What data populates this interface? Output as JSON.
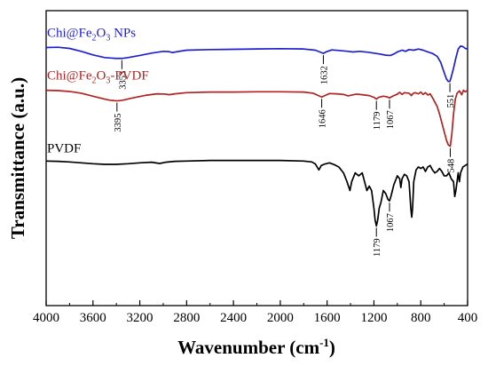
{
  "chart_data": {
    "type": "line",
    "title": "",
    "xlabel": "Wavenumber (cm⁻¹)",
    "xlabel_parts": {
      "main": "Wavenumber (cm",
      "sup": "-1",
      "close": ")"
    },
    "ylabel": "Transmittance (a.u.)",
    "xlim": [
      4000,
      400
    ],
    "x_reversed": true,
    "ylim": [
      0,
      1
    ],
    "y_ticks_shown": false,
    "grid": false,
    "x_ticks": [
      4000,
      3600,
      3200,
      2800,
      2400,
      2000,
      1600,
      1200,
      800,
      400
    ],
    "x_tick_labels": [
      "4000",
      "3600",
      "3200",
      "2800",
      "2400",
      "2000",
      "1600",
      "1200",
      "800",
      "400"
    ],
    "series": [
      {
        "name": "Chi@Fe₂O₃ NPs",
        "label_parts": {
          "pre": "Chi@Fe",
          "sub1": "2",
          "mid": "O",
          "sub2": "3",
          "post": " NPs"
        },
        "color": "#1f1fd0",
        "points": [
          [
            4000,
            0.875
          ],
          [
            3900,
            0.876
          ],
          [
            3800,
            0.872
          ],
          [
            3700,
            0.862
          ],
          [
            3600,
            0.85
          ],
          [
            3500,
            0.841
          ],
          [
            3400,
            0.838
          ],
          [
            3353,
            0.838
          ],
          [
            3300,
            0.841
          ],
          [
            3200,
            0.848
          ],
          [
            3100,
            0.856
          ],
          [
            3000,
            0.862
          ],
          [
            2950,
            0.861
          ],
          [
            2920,
            0.858
          ],
          [
            2880,
            0.861
          ],
          [
            2800,
            0.866
          ],
          [
            2600,
            0.868
          ],
          [
            2400,
            0.869
          ],
          [
            2200,
            0.87
          ],
          [
            2000,
            0.871
          ],
          [
            1800,
            0.87
          ],
          [
            1700,
            0.866
          ],
          [
            1650,
            0.858
          ],
          [
            1632,
            0.855
          ],
          [
            1610,
            0.86
          ],
          [
            1560,
            0.867
          ],
          [
            1500,
            0.865
          ],
          [
            1420,
            0.862
          ],
          [
            1380,
            0.86
          ],
          [
            1320,
            0.862
          ],
          [
            1250,
            0.859
          ],
          [
            1200,
            0.856
          ],
          [
            1150,
            0.853
          ],
          [
            1100,
            0.849
          ],
          [
            1060,
            0.848
          ],
          [
            1030,
            0.853
          ],
          [
            1000,
            0.86
          ],
          [
            960,
            0.866
          ],
          [
            930,
            0.862
          ],
          [
            900,
            0.868
          ],
          [
            860,
            0.866
          ],
          [
            820,
            0.87
          ],
          [
            780,
            0.866
          ],
          [
            740,
            0.86
          ],
          [
            700,
            0.855
          ],
          [
            660,
            0.845
          ],
          [
            630,
            0.825
          ],
          [
            600,
            0.79
          ],
          [
            580,
            0.768
          ],
          [
            565,
            0.76
          ],
          [
            551,
            0.76
          ],
          [
            540,
            0.775
          ],
          [
            520,
            0.805
          ],
          [
            500,
            0.84
          ],
          [
            480,
            0.87
          ],
          [
            460,
            0.88
          ],
          [
            440,
            0.878
          ],
          [
            420,
            0.872
          ],
          [
            400,
            0.87
          ]
        ]
      },
      {
        "name": "Chi@Fe₂O₃-PVDF",
        "label_parts": {
          "pre": "Chi@Fe",
          "sub1": "2",
          "mid": "O",
          "sub2": "3",
          "post": "-PVDF"
        },
        "color": "#b22222",
        "points": [
          [
            4000,
            0.73
          ],
          [
            3900,
            0.729
          ],
          [
            3800,
            0.726
          ],
          [
            3700,
            0.72
          ],
          [
            3600,
            0.71
          ],
          [
            3500,
            0.7
          ],
          [
            3450,
            0.696
          ],
          [
            3395,
            0.694
          ],
          [
            3350,
            0.696
          ],
          [
            3250,
            0.705
          ],
          [
            3150,
            0.713
          ],
          [
            3050,
            0.718
          ],
          [
            2980,
            0.717
          ],
          [
            2950,
            0.715
          ],
          [
            2900,
            0.718
          ],
          [
            2800,
            0.722
          ],
          [
            2600,
            0.724
          ],
          [
            2400,
            0.724
          ],
          [
            2200,
            0.725
          ],
          [
            2000,
            0.725
          ],
          [
            1800,
            0.724
          ],
          [
            1720,
            0.72
          ],
          [
            1680,
            0.713
          ],
          [
            1646,
            0.707
          ],
          [
            1620,
            0.712
          ],
          [
            1580,
            0.719
          ],
          [
            1520,
            0.718
          ],
          [
            1460,
            0.716
          ],
          [
            1420,
            0.711
          ],
          [
            1400,
            0.713
          ],
          [
            1350,
            0.717
          ],
          [
            1300,
            0.715
          ],
          [
            1240,
            0.712
          ],
          [
            1200,
            0.706
          ],
          [
            1179,
            0.7
          ],
          [
            1160,
            0.706
          ],
          [
            1120,
            0.71
          ],
          [
            1090,
            0.708
          ],
          [
            1067,
            0.704
          ],
          [
            1040,
            0.71
          ],
          [
            1000,
            0.717
          ],
          [
            980,
            0.723
          ],
          [
            960,
            0.716
          ],
          [
            940,
            0.722
          ],
          [
            900,
            0.72
          ],
          [
            880,
            0.712
          ],
          [
            870,
            0.718
          ],
          [
            850,
            0.722
          ],
          [
            820,
            0.718
          ],
          [
            800,
            0.724
          ],
          [
            780,
            0.716
          ],
          [
            760,
            0.722
          ],
          [
            740,
            0.714
          ],
          [
            720,
            0.718
          ],
          [
            700,
            0.705
          ],
          [
            680,
            0.69
          ],
          [
            660,
            0.675
          ],
          [
            640,
            0.65
          ],
          [
            620,
            0.62
          ],
          [
            600,
            0.59
          ],
          [
            580,
            0.56
          ],
          [
            565,
            0.545
          ],
          [
            548,
            0.54
          ],
          [
            535,
            0.58
          ],
          [
            520,
            0.65
          ],
          [
            505,
            0.7
          ],
          [
            490,
            0.72
          ],
          [
            470,
            0.728
          ],
          [
            450,
            0.715
          ],
          [
            435,
            0.73
          ],
          [
            420,
            0.725
          ],
          [
            400,
            0.73
          ]
        ]
      },
      {
        "name": "PVDF",
        "label_parts": {
          "pre": "PVDF"
        },
        "color": "#000000",
        "points": [
          [
            4000,
            0.49
          ],
          [
            3900,
            0.489
          ],
          [
            3800,
            0.487
          ],
          [
            3700,
            0.484
          ],
          [
            3600,
            0.481
          ],
          [
            3500,
            0.479
          ],
          [
            3400,
            0.479
          ],
          [
            3300,
            0.481
          ],
          [
            3200,
            0.484
          ],
          [
            3100,
            0.486
          ],
          [
            3030,
            0.482
          ],
          [
            2980,
            0.486
          ],
          [
            2900,
            0.489
          ],
          [
            2800,
            0.49
          ],
          [
            2600,
            0.492
          ],
          [
            2400,
            0.492
          ],
          [
            2200,
            0.492
          ],
          [
            2000,
            0.492
          ],
          [
            1800,
            0.49
          ],
          [
            1730,
            0.487
          ],
          [
            1700,
            0.48
          ],
          [
            1670,
            0.46
          ],
          [
            1650,
            0.475
          ],
          [
            1620,
            0.48
          ],
          [
            1580,
            0.484
          ],
          [
            1540,
            0.478
          ],
          [
            1500,
            0.47
          ],
          [
            1460,
            0.45
          ],
          [
            1430,
            0.42
          ],
          [
            1405,
            0.39
          ],
          [
            1390,
            0.42
          ],
          [
            1360,
            0.45
          ],
          [
            1330,
            0.44
          ],
          [
            1300,
            0.45
          ],
          [
            1280,
            0.42
          ],
          [
            1260,
            0.39
          ],
          [
            1240,
            0.405
          ],
          [
            1220,
            0.39
          ],
          [
            1200,
            0.33
          ],
          [
            1190,
            0.29
          ],
          [
            1179,
            0.27
          ],
          [
            1168,
            0.29
          ],
          [
            1155,
            0.33
          ],
          [
            1140,
            0.35
          ],
          [
            1120,
            0.39
          ],
          [
            1100,
            0.38
          ],
          [
            1080,
            0.36
          ],
          [
            1067,
            0.355
          ],
          [
            1055,
            0.37
          ],
          [
            1030,
            0.41
          ],
          [
            1000,
            0.44
          ],
          [
            980,
            0.43
          ],
          [
            970,
            0.4
          ],
          [
            960,
            0.43
          ],
          [
            940,
            0.445
          ],
          [
            920,
            0.44
          ],
          [
            900,
            0.42
          ],
          [
            885,
            0.33
          ],
          [
            877,
            0.3
          ],
          [
            870,
            0.33
          ],
          [
            860,
            0.42
          ],
          [
            840,
            0.46
          ],
          [
            820,
            0.47
          ],
          [
            800,
            0.465
          ],
          [
            780,
            0.47
          ],
          [
            760,
            0.455
          ],
          [
            740,
            0.47
          ],
          [
            720,
            0.475
          ],
          [
            700,
            0.46
          ],
          [
            680,
            0.45
          ],
          [
            660,
            0.455
          ],
          [
            640,
            0.465
          ],
          [
            620,
            0.455
          ],
          [
            600,
            0.44
          ],
          [
            580,
            0.44
          ],
          [
            560,
            0.45
          ],
          [
            540,
            0.43
          ],
          [
            520,
            0.42
          ],
          [
            510,
            0.37
          ],
          [
            500,
            0.39
          ],
          [
            490,
            0.42
          ],
          [
            480,
            0.45
          ],
          [
            470,
            0.42
          ],
          [
            460,
            0.45
          ],
          [
            440,
            0.47
          ],
          [
            420,
            0.475
          ],
          [
            400,
            0.48
          ]
        ]
      }
    ],
    "annotations": [
      {
        "label": "3353",
        "series": 0,
        "x": 3353
      },
      {
        "label": "1632",
        "series": 0,
        "x": 1632
      },
      {
        "label": "551",
        "series": 0,
        "x": 551
      },
      {
        "label": "3395",
        "series": 1,
        "x": 3395
      },
      {
        "label": "1646",
        "series": 1,
        "x": 1646
      },
      {
        "label": "1179",
        "series": 1,
        "x": 1179
      },
      {
        "label": "1067",
        "series": 1,
        "x": 1067
      },
      {
        "label": "548",
        "series": 1,
        "x": 548
      },
      {
        "label": "1179",
        "series": 2,
        "x": 1179
      },
      {
        "label": "1067",
        "series": 2,
        "x": 1067
      }
    ]
  }
}
